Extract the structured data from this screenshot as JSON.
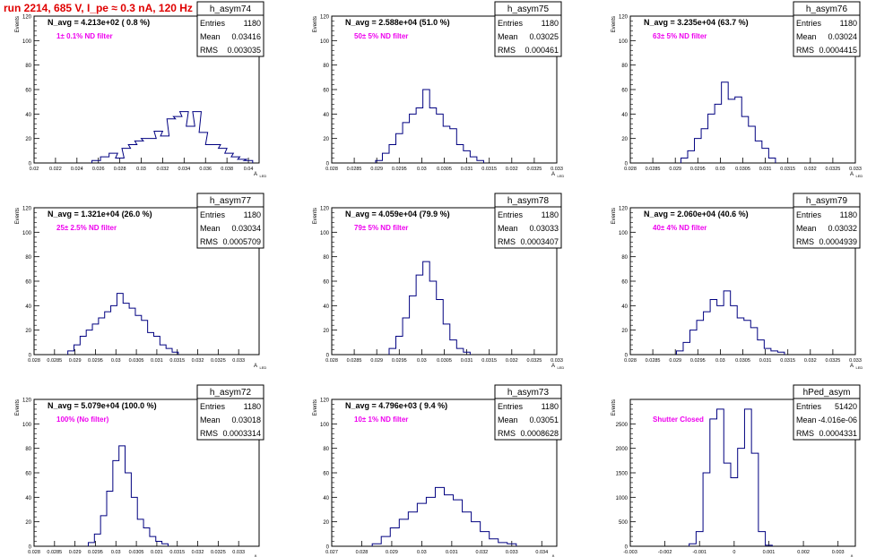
{
  "header": {
    "title": "run 2214,   685 V, I_pe ≈ 0.3 nA, 120 Hz"
  },
  "colors": {
    "hist_line": "#000080",
    "annotation": "#ee00ee",
    "header": "#e00000"
  },
  "y_axis_label": "Events",
  "x_axis_label": "A",
  "x_axis_label_sub": "LED",
  "stats_labels": {
    "entries": "Entries",
    "mean": "Mean",
    "rms": "RMS"
  },
  "chart_data": [
    {
      "type": "bar",
      "name": "h_asym74",
      "summary": "N_avg = 4.213e+02 ( 0.8 %)",
      "annotation": "1± 0.1% ND filter",
      "stats": {
        "entries": "1180",
        "mean": "0.03416",
        "rms": "0.003035"
      },
      "xlim": [
        0.02,
        0.041
      ],
      "ylim": [
        0,
        120
      ],
      "xticks": [
        "0.02",
        "0.022",
        "0.024",
        "0.026",
        "0.028",
        "0.03",
        "0.032",
        "0.034",
        "0.036",
        "0.038",
        "0.04"
      ],
      "yticks": [
        "0",
        "20",
        "40",
        "60",
        "80",
        "100",
        "120"
      ],
      "bin_centers": [
        0.0258,
        0.0266,
        0.0274,
        0.028,
        0.0286,
        0.0292,
        0.0298,
        0.0304,
        0.031,
        0.0316,
        0.0322,
        0.0328,
        0.0334,
        0.034,
        0.0346,
        0.0352,
        0.0358,
        0.0364,
        0.037,
        0.0376,
        0.0382,
        0.0388,
        0.0394,
        0.04
      ],
      "values": [
        2,
        5,
        8,
        4,
        12,
        15,
        18,
        20,
        20,
        26,
        22,
        36,
        38,
        42,
        30,
        42,
        25,
        15,
        15,
        12,
        8,
        5,
        3,
        2
      ]
    },
    {
      "type": "bar",
      "name": "h_asym75",
      "summary": "N_avg = 2.588e+04 (51.0 %)",
      "annotation": "50± 5% ND filter",
      "stats": {
        "entries": "1180",
        "mean": "0.03025",
        "rms": "0.000461"
      },
      "xlim": [
        0.028,
        0.033
      ],
      "ylim": [
        0,
        120
      ],
      "xticks": [
        "0.028",
        "0.0285",
        "0.029",
        "0.0295",
        "0.03",
        "0.0305",
        "0.031",
        "0.0315",
        "0.032",
        "0.0325",
        "0.033"
      ],
      "yticks": [
        "0",
        "20",
        "40",
        "60",
        "80",
        "100",
        "120"
      ],
      "bin_centers": [
        0.02905,
        0.0292,
        0.02935,
        0.0295,
        0.02965,
        0.0298,
        0.02995,
        0.0301,
        0.03025,
        0.0304,
        0.03055,
        0.0307,
        0.03085,
        0.031,
        0.03115,
        0.0313
      ],
      "values": [
        2,
        8,
        15,
        24,
        33,
        40,
        45,
        60,
        45,
        40,
        30,
        28,
        15,
        10,
        5,
        2
      ]
    },
    {
      "type": "bar",
      "name": "h_asym76",
      "summary": "N_avg = 3.235e+04 (63.7 %)",
      "annotation": "63± 5% ND filter",
      "stats": {
        "entries": "1180",
        "mean": "0.03024",
        "rms": "0.0004415"
      },
      "xlim": [
        0.028,
        0.033
      ],
      "ylim": [
        0,
        120
      ],
      "xticks": [
        "0.028",
        "0.0285",
        "0.029",
        "0.0295",
        "0.03",
        "0.0305",
        "0.031",
        "0.0315",
        "0.032",
        "0.0325",
        "0.033"
      ],
      "yticks": [
        "0",
        "20",
        "40",
        "60",
        "80",
        "100",
        "120"
      ],
      "bin_centers": [
        0.0292,
        0.02935,
        0.0295,
        0.02965,
        0.0298,
        0.02995,
        0.0301,
        0.03025,
        0.0304,
        0.03055,
        0.0307,
        0.03085,
        0.031,
        0.03115
      ],
      "values": [
        4,
        10,
        20,
        28,
        40,
        48,
        66,
        52,
        54,
        38,
        30,
        18,
        12,
        4
      ]
    },
    {
      "type": "bar",
      "name": "h_asym77",
      "summary": "N_avg = 1.321e+04 (26.0 %)",
      "annotation": "25± 2.5% ND filter",
      "stats": {
        "entries": "1180",
        "mean": "0.03034",
        "rms": "0.0005709"
      },
      "xlim": [
        0.028,
        0.0335
      ],
      "ylim": [
        0,
        120
      ],
      "xticks": [
        "0.028",
        "0.0285",
        "0.029",
        "0.0295",
        "0.03",
        "0.0305",
        "0.031",
        "0.0315",
        "0.032",
        "0.0325",
        "0.033"
      ],
      "yticks": [
        "0",
        "20",
        "40",
        "60",
        "80",
        "100",
        "120"
      ],
      "bin_centers": [
        0.0289,
        0.02905,
        0.0292,
        0.02935,
        0.0295,
        0.02965,
        0.0298,
        0.02995,
        0.0301,
        0.03025,
        0.0304,
        0.03055,
        0.0307,
        0.03085,
        0.031,
        0.03115,
        0.0313,
        0.03145
      ],
      "values": [
        3,
        8,
        15,
        20,
        25,
        30,
        35,
        40,
        50,
        42,
        38,
        32,
        28,
        18,
        15,
        8,
        5,
        2
      ]
    },
    {
      "type": "bar",
      "name": "h_asym78",
      "summary": "N_avg = 4.059e+04 (79.9 %)",
      "annotation": "79± 5% ND filter",
      "stats": {
        "entries": "1180",
        "mean": "0.03033",
        "rms": "0.0003407"
      },
      "xlim": [
        0.028,
        0.033
      ],
      "ylim": [
        0,
        120
      ],
      "xticks": [
        "0.028",
        "0.0285",
        "0.029",
        "0.0295",
        "0.03",
        "0.0305",
        "0.031",
        "0.0315",
        "0.032",
        "0.0325",
        "0.033"
      ],
      "yticks": [
        "0",
        "20",
        "40",
        "60",
        "80",
        "100",
        "120"
      ],
      "bin_centers": [
        0.02935,
        0.0295,
        0.02965,
        0.0298,
        0.02995,
        0.0301,
        0.03025,
        0.0304,
        0.03055,
        0.0307,
        0.03085,
        0.031
      ],
      "values": [
        5,
        15,
        30,
        48,
        65,
        76,
        60,
        45,
        25,
        12,
        5,
        2
      ]
    },
    {
      "type": "bar",
      "name": "h_asym79",
      "summary": "N_avg = 2.060e+04 (40.6 %)",
      "annotation": "40± 4% ND filter",
      "stats": {
        "entries": "1180",
        "mean": "0.03032",
        "rms": "0.0004939"
      },
      "xlim": [
        0.028,
        0.033
      ],
      "ylim": [
        0,
        120
      ],
      "xticks": [
        "0.028",
        "0.0285",
        "0.029",
        "0.0295",
        "0.03",
        "0.0305",
        "0.031",
        "0.0315",
        "0.032",
        "0.0325",
        "0.033"
      ],
      "yticks": [
        "0",
        "20",
        "40",
        "60",
        "80",
        "100",
        "120"
      ],
      "bin_centers": [
        0.0291,
        0.02925,
        0.0294,
        0.02955,
        0.0297,
        0.02985,
        0.03,
        0.03015,
        0.0303,
        0.03045,
        0.0306,
        0.03075,
        0.0309,
        0.03105,
        0.0312,
        0.03135
      ],
      "values": [
        3,
        10,
        20,
        28,
        35,
        45,
        40,
        52,
        40,
        30,
        28,
        22,
        12,
        5,
        3,
        2
      ]
    },
    {
      "type": "bar",
      "name": "h_asym72",
      "summary": "N_avg = 5.079e+04 (100.0 %)",
      "annotation": "100% (No filter)",
      "stats": {
        "entries": "1180",
        "mean": "0.03018",
        "rms": "0.0003314"
      },
      "xlim": [
        0.028,
        0.0335
      ],
      "ylim": [
        0,
        120
      ],
      "xticks": [
        "0.028",
        "0.0285",
        "0.029",
        "0.0295",
        "0.03",
        "0.0305",
        "0.031",
        "0.0315",
        "0.032",
        "0.0325",
        "0.033"
      ],
      "yticks": [
        "0",
        "20",
        "40",
        "60",
        "80",
        "100",
        "120"
      ],
      "bin_centers": [
        0.0294,
        0.02955,
        0.0297,
        0.02985,
        0.03,
        0.03015,
        0.0303,
        0.03045,
        0.0306,
        0.03075,
        0.0309,
        0.03105,
        0.0312
      ],
      "values": [
        3,
        10,
        25,
        45,
        70,
        82,
        60,
        40,
        22,
        15,
        8,
        4,
        2
      ]
    },
    {
      "type": "bar",
      "name": "h_asym73",
      "summary": "N_avg = 4.796e+03 ( 9.4 %)",
      "annotation": "10± 1% ND filter",
      "stats": {
        "entries": "1180",
        "mean": "0.03051",
        "rms": "0.0008628"
      },
      "xlim": [
        0.027,
        0.0345
      ],
      "ylim": [
        0,
        120
      ],
      "xticks": [
        "0.027",
        "0.028",
        "0.029",
        "0.03",
        "0.031",
        "0.032",
        "0.033",
        "0.034"
      ],
      "yticks": [
        "0",
        "20",
        "40",
        "60",
        "80",
        "100",
        "120"
      ],
      "bin_centers": [
        0.0285,
        0.0288,
        0.0291,
        0.0294,
        0.0297,
        0.03,
        0.0303,
        0.0306,
        0.0309,
        0.0312,
        0.0315,
        0.0318,
        0.0321,
        0.0324,
        0.0327,
        0.033
      ],
      "values": [
        2,
        8,
        15,
        22,
        28,
        35,
        40,
        48,
        42,
        38,
        28,
        20,
        12,
        6,
        3,
        2
      ]
    },
    {
      "type": "bar",
      "name": "hPed_asym",
      "summary": "",
      "annotation": "Shutter Closed",
      "stats": {
        "entries": "51420",
        "mean": "-4.016e-06",
        "rms": "0.0004331"
      },
      "xlim": [
        -0.003,
        0.0035
      ],
      "ylim": [
        0,
        3000
      ],
      "xticks": [
        "-0.003",
        "-0.002",
        "-0.001",
        "0",
        "0.001",
        "0.002",
        "0.003"
      ],
      "yticks": [
        "0",
        "500",
        "1000",
        "1500",
        "2000",
        "2500"
      ],
      "bin_centers": [
        -0.0012,
        -0.001,
        -0.0008,
        -0.0006,
        -0.0004,
        -0.0002,
        0.0,
        0.0002,
        0.0004,
        0.0006,
        0.0008,
        0.001
      ],
      "values": [
        50,
        300,
        1500,
        2600,
        2800,
        1700,
        1400,
        2000,
        2800,
        1900,
        300,
        20
      ]
    }
  ]
}
